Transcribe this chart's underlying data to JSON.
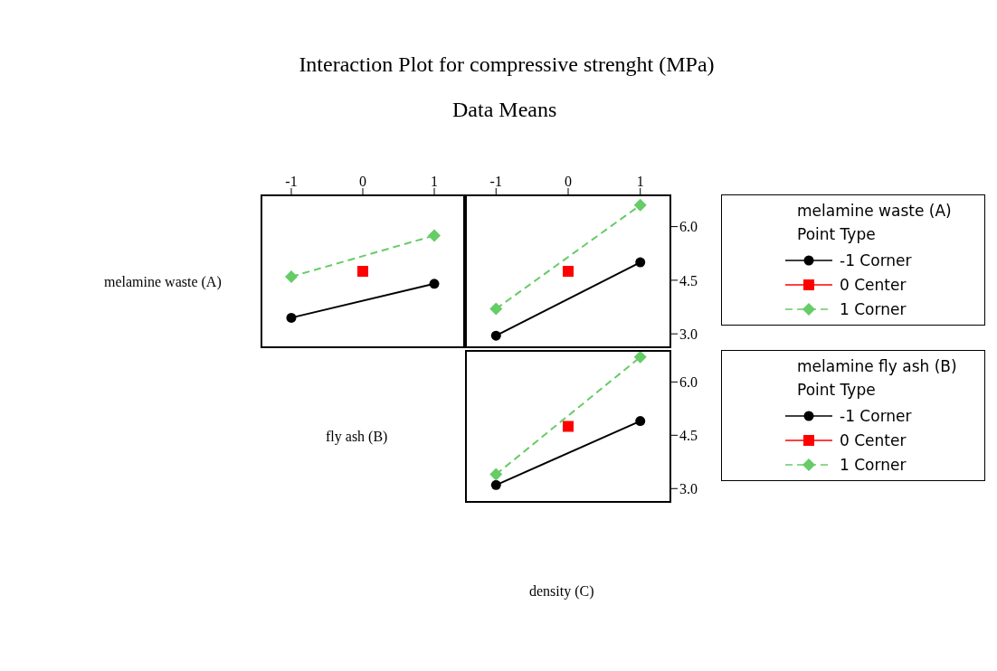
{
  "chart_data": [
    {
      "type": "line",
      "ylabel": "melamine waste (A)",
      "xlim": [
        -1.43,
        1.43
      ],
      "xticks": [
        -1,
        0,
        1
      ],
      "ylim": [
        2.6,
        6.9
      ],
      "tick_labels": "x",
      "series": [
        {
          "color": "#000000",
          "marker": "circle",
          "line_style": "solid",
          "x": [
            -1,
            1
          ],
          "values": [
            3.45,
            4.4
          ]
        },
        {
          "color": "#ff0000",
          "marker": "square",
          "line_style": "solid",
          "x": [
            0
          ],
          "values": [
            4.75
          ]
        },
        {
          "color": "#66cc66",
          "marker": "diamond",
          "line_style": "dashed",
          "x": [
            -1,
            1
          ],
          "values": [
            4.6,
            5.75
          ]
        }
      ]
    },
    {
      "type": "line",
      "title": "Interaction Plot for compressive strenght (MPa)",
      "subtitle": "Data Means",
      "legend": "right",
      "legend_title": "melamine waste (A) Point Type",
      "xlim": [
        -1.43,
        1.43
      ],
      "xticks": [
        -1,
        0,
        1
      ],
      "ylim": [
        2.6,
        6.9
      ],
      "yticks": [
        {
          "value": 3,
          "label": "3.0"
        },
        {
          "value": 4.5,
          "label": "4.5"
        },
        {
          "value": 6,
          "label": "6.0"
        }
      ],
      "series": [
        {
          "name": "-1 Corner",
          "color": "#000000",
          "marker": "circle",
          "line_style": "solid",
          "x": [
            -1,
            1
          ],
          "values": [
            2.95,
            5.0
          ]
        },
        {
          "name": "0 Center",
          "color": "#ff0000",
          "marker": "square",
          "line_style": "solid",
          "x": [
            0
          ],
          "values": [
            4.75
          ]
        },
        {
          "name": "1 Corner",
          "color": "#66cc66",
          "marker": "diamond",
          "line_style": "dashed",
          "x": [
            -1,
            1
          ],
          "values": [
            3.7,
            6.6
          ]
        }
      ]
    },
    {
      "type": "line",
      "legend": "right",
      "legend_title": "melamine fly ash (B) Point Type",
      "xlabel": "density (C)",
      "ylabel": "fly ash (B)",
      "xlim": [
        -1.43,
        1.43
      ],
      "ylim": [
        2.6,
        6.9
      ],
      "yticks": [
        {
          "value": 3,
          "label": "3.0"
        },
        {
          "value": 4.5,
          "label": "4.5"
        },
        {
          "value": 6,
          "label": "6.0"
        }
      ],
      "tick_labels": "y",
      "series": [
        {
          "name": "-1 Corner",
          "color": "#000000",
          "marker": "circle",
          "line_style": "solid",
          "x": [
            -1,
            1
          ],
          "values": [
            3.1,
            4.9
          ]
        },
        {
          "name": "0 Center",
          "color": "#ff0000",
          "marker": "square",
          "line_style": "solid",
          "x": [
            0
          ],
          "values": [
            4.75
          ]
        },
        {
          "name": "1 Corner",
          "color": "#66cc66",
          "marker": "diamond",
          "line_style": "dashed",
          "x": [
            -1,
            1
          ],
          "values": [
            3.4,
            6.7
          ]
        }
      ]
    }
  ]
}
